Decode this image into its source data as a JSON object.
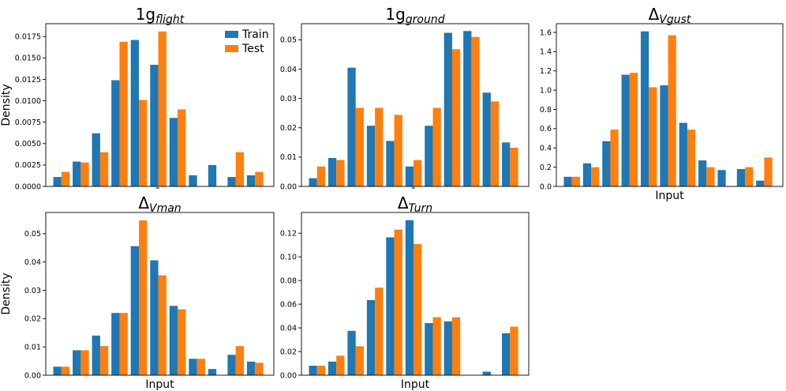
{
  "legend": {
    "train_label": "Train",
    "test_label": "Test"
  },
  "colors": {
    "train": "#1f77b4",
    "test": "#ff7f0e"
  },
  "chart_data": [
    {
      "type": "bar",
      "title": {
        "main": "1g",
        "bar": "¯",
        "sub": "flight"
      },
      "xlabel": "",
      "ylabel": "Density",
      "ylim": [
        0,
        0.019
      ],
      "yticks": [
        "0.0000",
        "0.0025",
        "0.0050",
        "0.0075",
        "0.0100",
        "0.0125",
        "0.0150",
        "0.0175"
      ],
      "ytick_values": [
        0,
        0.0025,
        0.005,
        0.0075,
        0.01,
        0.0125,
        0.015,
        0.0175
      ],
      "legend_position": "top-right",
      "series": [
        {
          "name": "Train",
          "values": [
            0.0011,
            0.0029,
            0.0062,
            0.0124,
            0.0171,
            0.0142,
            0.008,
            0.0013,
            0.0025,
            0.0011,
            0.0013
          ]
        },
        {
          "name": "Test",
          "values": [
            0.0017,
            0.0028,
            0.004,
            0.0169,
            0.0101,
            0.0181,
            0.009,
            0,
            0,
            0.004,
            0.0017
          ]
        }
      ]
    },
    {
      "type": "bar",
      "title": {
        "main": "1g",
        "bar": "¯",
        "sub": "ground"
      },
      "xlabel": "",
      "ylabel": "",
      "ylim": [
        0,
        0.0555
      ],
      "yticks": [
        "0.00",
        "0.01",
        "0.02",
        "0.03",
        "0.04",
        "0.05"
      ],
      "ytick_values": [
        0,
        0.01,
        0.02,
        0.03,
        0.04,
        0.05
      ],
      "series": [
        {
          "name": "Train",
          "values": [
            0.0028,
            0.0097,
            0.0405,
            0.0207,
            0.0155,
            0.0068,
            0.0207,
            0.0524,
            0.053,
            0.032,
            0.015
          ]
        },
        {
          "name": "Test",
          "values": [
            0.0068,
            0.009,
            0.0268,
            0.0268,
            0.0244,
            0.009,
            0.0268,
            0.0468,
            0.051,
            0.029,
            0.0132
          ]
        }
      ]
    },
    {
      "type": "bar",
      "title": {
        "main": "Δ",
        "bar": "¯",
        "sub": "Vgust"
      },
      "xlabel": "Input",
      "ylabel": "",
      "ylim": [
        0,
        1.69
      ],
      "yticks": [
        "0.0",
        "0.2",
        "0.4",
        "0.6",
        "0.8",
        "1.0",
        "1.2",
        "1.4",
        "1.6"
      ],
      "ytick_values": [
        0,
        0.2,
        0.4,
        0.6,
        0.8,
        1.0,
        1.2,
        1.4,
        1.6
      ],
      "series": [
        {
          "name": "Train",
          "values": [
            0.1,
            0.24,
            0.47,
            1.16,
            1.61,
            1.05,
            0.66,
            0.27,
            0.17,
            0.18,
            0.06
          ]
        },
        {
          "name": "Test",
          "values": [
            0.1,
            0.2,
            0.59,
            1.18,
            1.03,
            1.57,
            0.59,
            0.2,
            0,
            0.2,
            0.3
          ]
        }
      ]
    },
    {
      "type": "bar",
      "title": {
        "main": "Δ",
        "bar": "¯",
        "sub": "Vman"
      },
      "xlabel": "Input",
      "ylabel": "Density",
      "ylim": [
        0,
        0.0575
      ],
      "yticks": [
        "0.00",
        "0.01",
        "0.02",
        "0.03",
        "0.04",
        "0.05"
      ],
      "ytick_values": [
        0,
        0.01,
        0.02,
        0.03,
        0.04,
        0.05
      ],
      "series": [
        {
          "name": "Train",
          "values": [
            0.003,
            0.0088,
            0.014,
            0.022,
            0.0456,
            0.0406,
            0.0245,
            0.0058,
            0.0022,
            0.0072,
            0.0048
          ]
        },
        {
          "name": "Test",
          "values": [
            0.003,
            0.0088,
            0.0103,
            0.022,
            0.0547,
            0.0353,
            0.0233,
            0.0058,
            0,
            0.0103,
            0.0044
          ]
        }
      ]
    },
    {
      "type": "bar",
      "title": {
        "main": "Δ",
        "bar": "¯",
        "sub": "Turn"
      },
      "xlabel": "Input",
      "ylabel": "",
      "ylim": [
        0,
        0.1375
      ],
      "yticks": [
        "0.00",
        "0.02",
        "0.04",
        "0.06",
        "0.08",
        "0.10",
        "0.12"
      ],
      "ytick_values": [
        0,
        0.02,
        0.04,
        0.06,
        0.08,
        0.1,
        0.12
      ],
      "series": [
        {
          "name": "Train",
          "values": [
            0.008,
            0.0115,
            0.0375,
            0.0635,
            0.1165,
            0.131,
            0.044,
            0.0455,
            0,
            0.003,
            0.0355
          ]
        },
        {
          "name": "Test",
          "values": [
            0.008,
            0.0165,
            0.0245,
            0.074,
            0.123,
            0.111,
            0.049,
            0.049,
            0,
            0,
            0.041
          ]
        }
      ]
    }
  ]
}
